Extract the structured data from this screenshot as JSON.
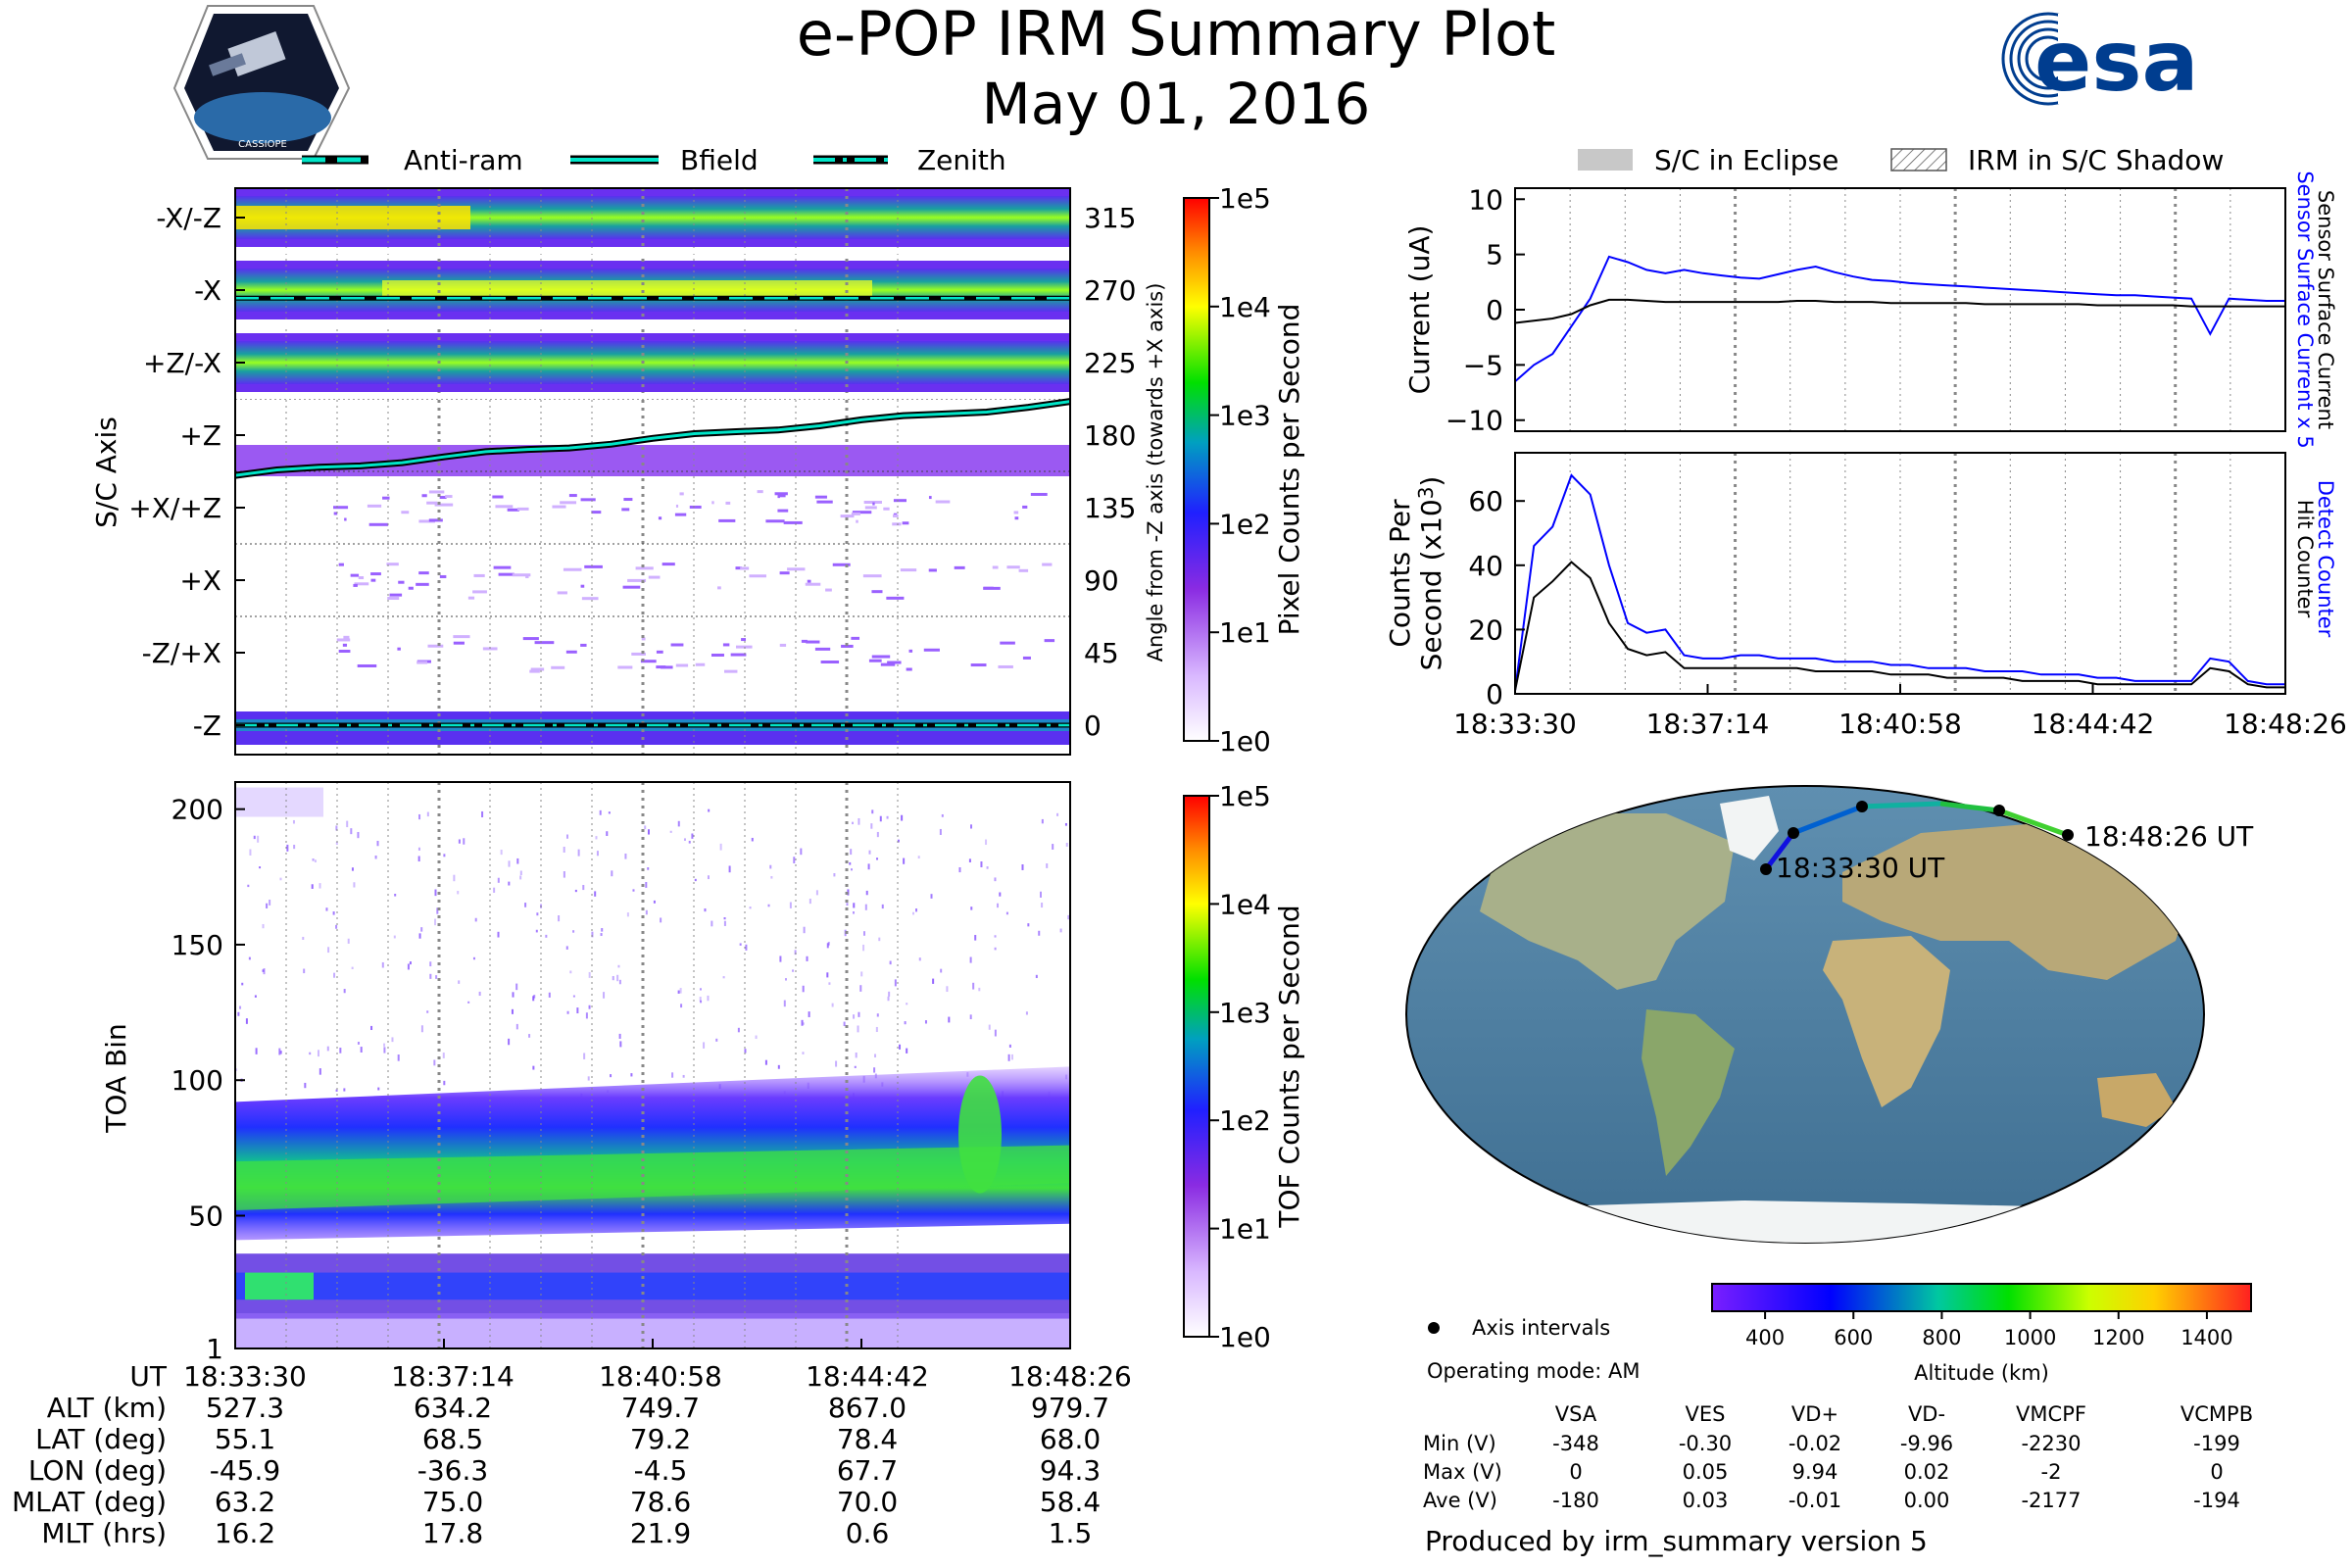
{
  "header": {
    "title": "e-POP IRM Summary Plot",
    "date": "May 01, 2016",
    "left_logo": "CASSIOPE",
    "right_logo": "esa"
  },
  "colors": {
    "accent_blue": "#1f3ec8",
    "esa_blue": "#003d8f",
    "cyan": "#00e5c8"
  },
  "chart_data": [
    {
      "type": "heatmap",
      "name": "Pixel counts by S/C axis",
      "ylabel": "S/C Axis",
      "ylabel_right": "Angle from -Z axis (towards +X axis)",
      "row_labels": [
        "-X/-Z",
        "-X",
        "+Z/-X",
        "+Z",
        "+X/+Z",
        "+X",
        "-Z/+X",
        "-Z"
      ],
      "right_ticks": [
        "315",
        "270",
        "225",
        "180",
        "135",
        "90",
        "45",
        "0"
      ],
      "legend": [
        "Anti-ram",
        "Bfield",
        "Zenith"
      ],
      "colorbar_label": "Pixel Counts per Second",
      "colorbar_ticks": [
        "1e0",
        "1e1",
        "1e2",
        "1e3",
        "1e4",
        "1e5"
      ],
      "x_ticks": [
        "18:33:30",
        "18:37:14",
        "18:40:58",
        "18:44:42",
        "18:48:26"
      ],
      "bfield_angle_deg": [
        155,
        200
      ],
      "antiram_angle_deg": 265,
      "zenith_angle_deg": 0
    },
    {
      "type": "heatmap",
      "name": "Time of flight",
      "ylabel": "TOA Bin",
      "y_ticks": [
        "1",
        "50",
        "100",
        "150",
        "200"
      ],
      "ylim": [
        1,
        210
      ],
      "colorbar_label": "TOF Counts per Second",
      "colorbar_ticks": [
        "1e0",
        "1e1",
        "1e2",
        "1e3",
        "1e4",
        "1e5"
      ],
      "x_ticks": [
        "18:33:30",
        "18:37:14",
        "18:40:58",
        "18:44:42",
        "18:48:26"
      ]
    },
    {
      "type": "line",
      "name": "Sensor surface current",
      "ylabel": "Current (uA)",
      "ylabel_right_1": "Sensor Surface Current x 5",
      "ylabel_right_2": "Sensor Surface Current",
      "legend": [
        "S/C in Eclipse",
        "IRM in S/C Shadow"
      ],
      "y_ticks": [
        "10",
        "5",
        "0",
        "−5",
        "−10"
      ],
      "ylim": [
        -11,
        11
      ],
      "series": [
        {
          "name": "Sensor Surface Current x 5",
          "color": "#0000ff",
          "values": [
            -6.5,
            -5,
            -4,
            -1.5,
            1,
            4.8,
            4.3,
            3.6,
            3.3,
            3.6,
            3.3,
            3.1,
            2.9,
            2.8,
            3.2,
            3.6,
            3.9,
            3.4,
            3.0,
            2.7,
            2.6,
            2.4,
            2.3,
            2.2,
            2.1,
            2.0,
            1.9,
            1.8,
            1.7,
            1.6,
            1.5,
            1.4,
            1.3,
            1.3,
            1.2,
            1.1,
            1.0,
            -2.2,
            1.0,
            0.9,
            0.8,
            0.8
          ]
        },
        {
          "name": "Sensor Surface Current",
          "color": "#000000",
          "values": [
            -1.2,
            -1.0,
            -0.8,
            -0.4,
            0.4,
            0.9,
            0.9,
            0.8,
            0.7,
            0.7,
            0.7,
            0.7,
            0.7,
            0.7,
            0.7,
            0.8,
            0.8,
            0.7,
            0.7,
            0.7,
            0.6,
            0.6,
            0.6,
            0.6,
            0.6,
            0.5,
            0.5,
            0.5,
            0.5,
            0.5,
            0.5,
            0.4,
            0.4,
            0.4,
            0.4,
            0.4,
            0.3,
            0.3,
            0.3,
            0.3,
            0.3,
            0.3
          ]
        }
      ]
    },
    {
      "type": "line",
      "name": "Counter",
      "ylabel_1": "Counts Per",
      "ylabel_2": "Second (x10",
      "ylabel_sup": "3",
      "ylabel_end": ")",
      "ylabel_right_1": "Detect Counter",
      "ylabel_right_2": "Hit Counter",
      "y_ticks": [
        "60",
        "40",
        "20",
        "0"
      ],
      "ylim": [
        0,
        75
      ],
      "x_ticks": [
        "18:33:30",
        "18:37:14",
        "18:40:58",
        "18:44:42",
        "18:48:26"
      ],
      "series": [
        {
          "name": "Detect Counter",
          "color": "#0000ff",
          "values": [
            1,
            46,
            52,
            68,
            62,
            40,
            22,
            19,
            20,
            12,
            11,
            11,
            12,
            12,
            11,
            11,
            11,
            10,
            10,
            10,
            9,
            9,
            8,
            8,
            8,
            7,
            7,
            7,
            6,
            6,
            6,
            5,
            5,
            4,
            4,
            4,
            4,
            11,
            10,
            4,
            3,
            3
          ]
        },
        {
          "name": "Hit Counter",
          "color": "#000000",
          "values": [
            1,
            30,
            35,
            41,
            36,
            22,
            14,
            12,
            13,
            8,
            8,
            8,
            8,
            8,
            8,
            8,
            7,
            7,
            7,
            7,
            6,
            6,
            6,
            5,
            5,
            5,
            5,
            4,
            4,
            4,
            4,
            3,
            3,
            3,
            3,
            3,
            3,
            8,
            7,
            3,
            2,
            2
          ]
        }
      ]
    }
  ],
  "map": {
    "start_label": "18:33:30 UT",
    "end_label": "18:48:26 UT",
    "legend_axis_intervals": "Axis intervals",
    "operating_mode": "Operating mode: AM",
    "altitude_label": "Altitude (km)",
    "altitude_ticks": [
      "400",
      "600",
      "800",
      "1000",
      "1200",
      "1400"
    ]
  },
  "ephemeris": {
    "labels": [
      "UT",
      "ALT (km)",
      "LAT (deg)",
      "LON (deg)",
      "MLAT (deg)",
      "MLT (hrs)"
    ],
    "columns": [
      [
        "18:33:30",
        "527.3",
        "55.1",
        "-45.9",
        "63.2",
        "16.2"
      ],
      [
        "18:37:14",
        "634.2",
        "68.5",
        "-36.3",
        "75.0",
        "17.8"
      ],
      [
        "18:40:58",
        "749.7",
        "79.2",
        "-4.5",
        "78.6",
        "21.9"
      ],
      [
        "18:44:42",
        "867.0",
        "78.4",
        "67.7",
        "70.0",
        "0.6"
      ],
      [
        "18:48:26",
        "979.7",
        "68.0",
        "94.3",
        "58.4",
        "1.5"
      ]
    ]
  },
  "voltages": {
    "headers": [
      "VSA",
      "VES",
      "VD+",
      "VD-",
      "VMCPF",
      "VCMPB"
    ],
    "rows": [
      {
        "label": "Min (V)",
        "values": [
          "-348",
          "-0.30",
          "-0.02",
          "-9.96",
          "-2230",
          "-199"
        ]
      },
      {
        "label": "Max (V)",
        "values": [
          "0",
          "0.05",
          "9.94",
          "0.02",
          "-2",
          "0"
        ]
      },
      {
        "label": "Ave (V)",
        "values": [
          "-180",
          "0.03",
          "-0.01",
          "0.00",
          "-2177",
          "-194"
        ]
      }
    ]
  },
  "footer": "Produced by irm_summary version 5"
}
